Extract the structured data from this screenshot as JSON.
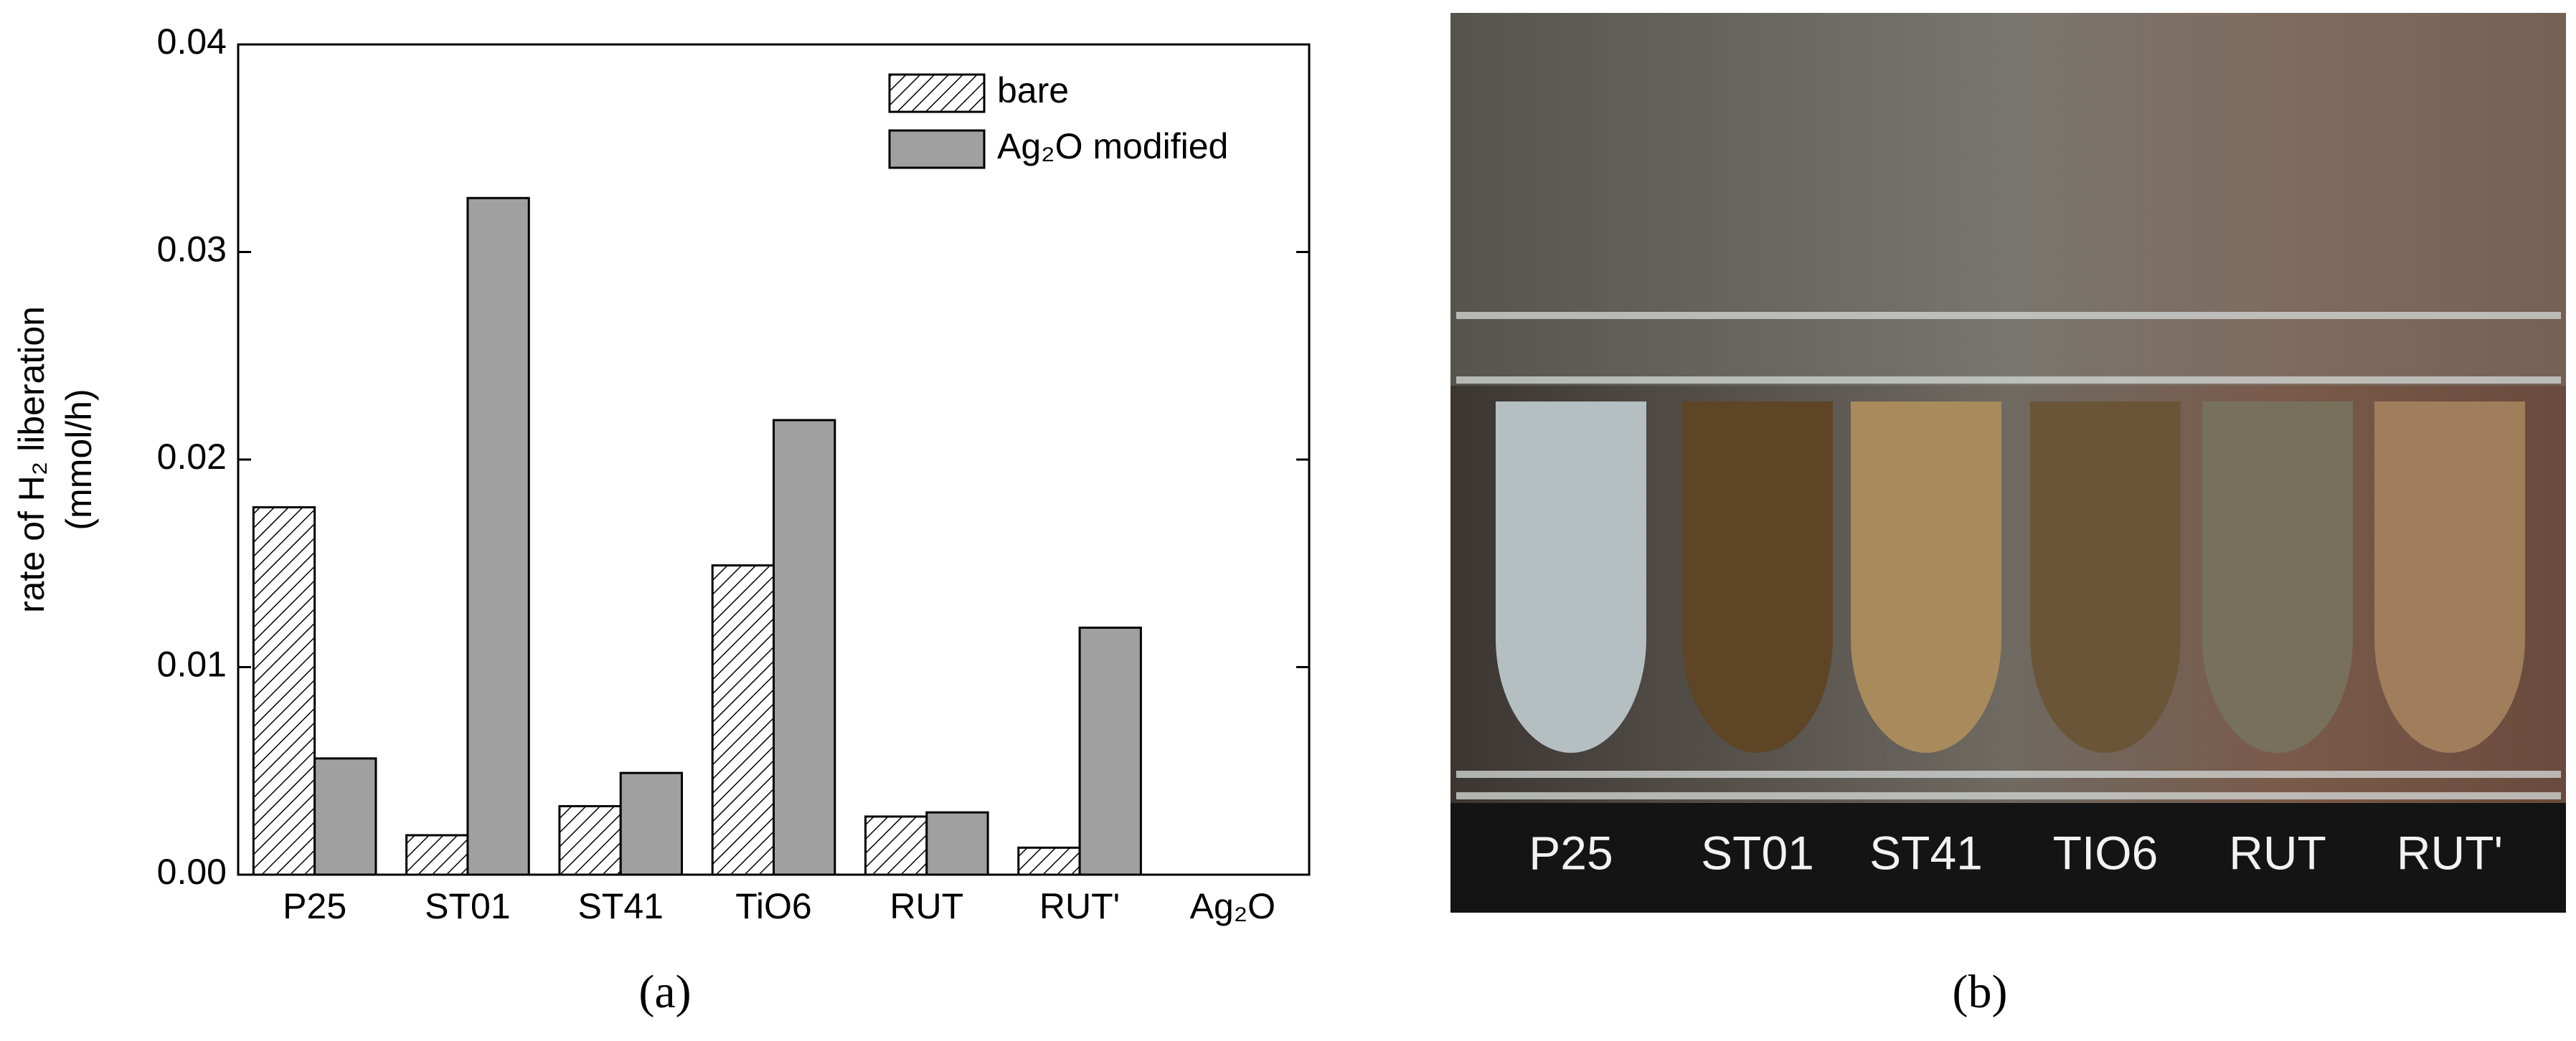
{
  "chart_data": {
    "type": "bar",
    "ylabel": [
      "rate of H₂ liberation",
      "(mmol/h)"
    ],
    "categories": [
      "P25",
      "ST01",
      "ST41",
      "TiO6",
      "RUT",
      "RUT'",
      "Ag₂O"
    ],
    "series": [
      {
        "name": "bare",
        "color": "#ffffff",
        "hatch": true,
        "values": [
          0.0177,
          0.0019,
          0.0033,
          0.0149,
          0.0028,
          0.0013,
          0
        ]
      },
      {
        "name": "Ag₂O modified",
        "color": "#a0a0a0",
        "hatch": false,
        "values": [
          0.0056,
          0.0326,
          0.0049,
          0.0219,
          0.003,
          0.0119,
          0
        ]
      }
    ],
    "ylim": [
      0,
      0.04
    ],
    "yticks": [
      {
        "value": 0,
        "label": "0.00"
      },
      0.01,
      0.02,
      0.03,
      0.04
    ],
    "legend": "upper right",
    "panel_label": "(a)"
  },
  "photo": {
    "panel_label": "(b)",
    "labels": [
      "P25",
      "ST01",
      "ST41",
      "TIO6",
      "RUT",
      "RUT'"
    ]
  }
}
